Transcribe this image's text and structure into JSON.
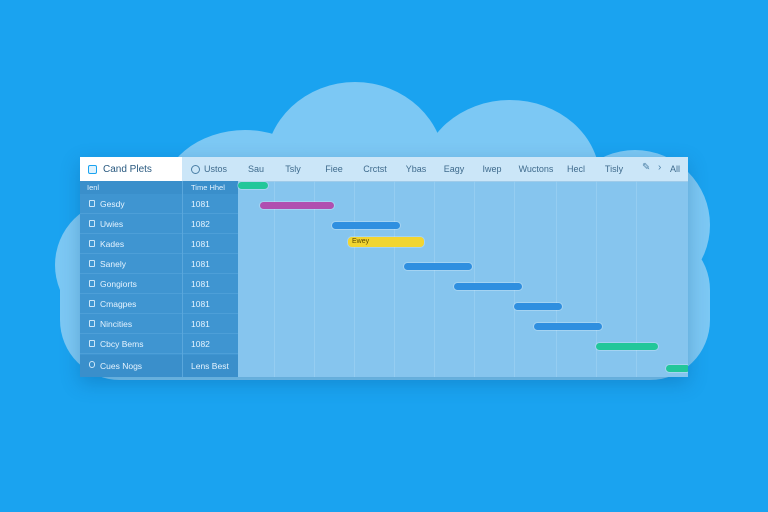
{
  "app": {
    "title": "Cand Plets"
  },
  "header": {
    "status_label": "Ustos",
    "columns": [
      "Sau",
      "Tsly",
      "Fiee",
      "Crctst",
      "Ybas",
      "Eagy",
      "Iwep",
      "Wuctons",
      "Hecl",
      "Tisly"
    ],
    "all_label": "All"
  },
  "subheader": {
    "col1": "Ienl",
    "col2": "Time Hhel"
  },
  "rows": [
    {
      "name": "Gesdy",
      "num": "1081"
    },
    {
      "name": "Uwies",
      "num": "1082"
    },
    {
      "name": "Kades",
      "num": "1081"
    },
    {
      "name": "Sanely",
      "num": "1081"
    },
    {
      "name": "Gongiorts",
      "num": "1081"
    },
    {
      "name": "Cmagpes",
      "num": "1081"
    },
    {
      "name": "Nincities",
      "num": "1081"
    },
    {
      "name": "Cbcy Bems",
      "num": "1082"
    }
  ],
  "footer": {
    "name": "Cues Nogs",
    "num": "Lens Best"
  },
  "bars": [
    {
      "color": "#22c79a",
      "label": ""
    },
    {
      "color": "#b04fb0",
      "label": ""
    },
    {
      "color": "#2f8fe0",
      "label": ""
    },
    {
      "color": "#f2d530",
      "label": "Ewey"
    },
    {
      "color": "#2f8fe0",
      "label": ""
    },
    {
      "color": "#2f8fe0",
      "label": ""
    },
    {
      "color": "#2f8fe0",
      "label": ""
    },
    {
      "color": "#2f8fe0",
      "label": ""
    },
    {
      "color": "#22c79a",
      "label": ""
    },
    {
      "color": "#22c79a",
      "label": ""
    }
  ],
  "colors": {
    "background": "#1aa3f0",
    "cloud": "#7cc8f4",
    "sidebar": "#3f95d1"
  }
}
